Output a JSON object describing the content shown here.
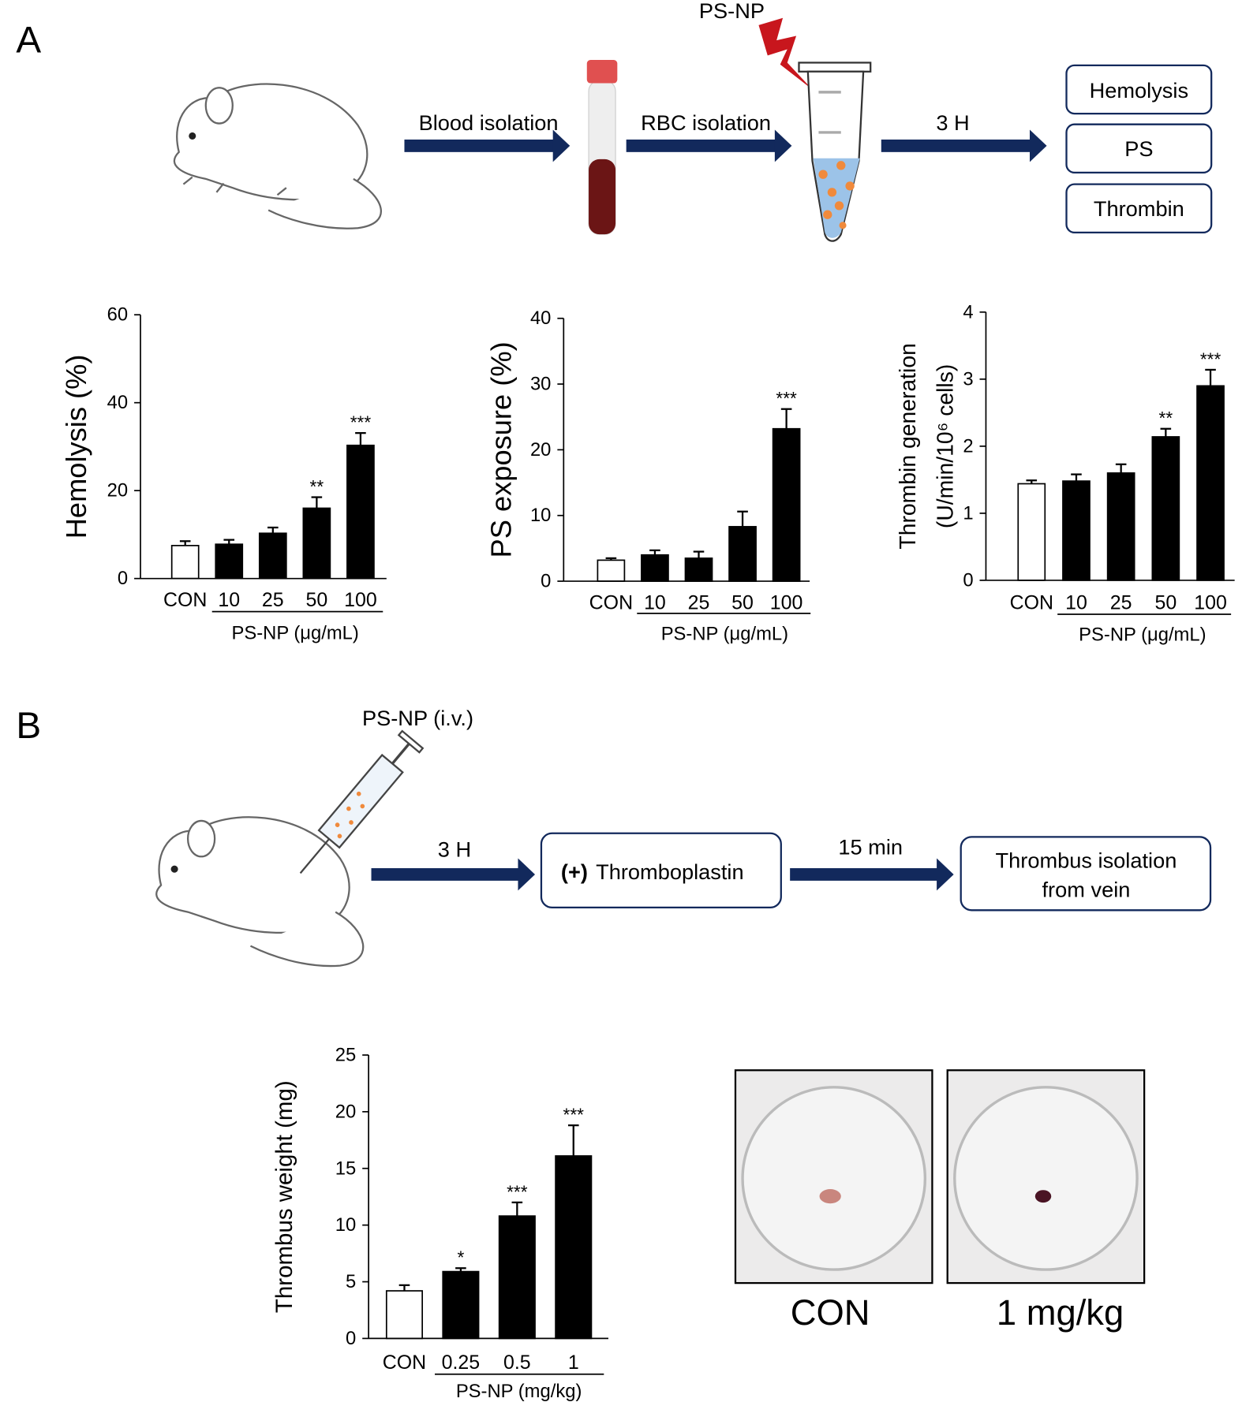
{
  "chart_data": [
    {
      "type": "bar",
      "y_label": "Hemolysis (%)",
      "categories": [
        "CON",
        "10",
        "25",
        "50",
        "100"
      ],
      "x_group_label": "PS-NP (μg/mL)",
      "values": [
        7.5,
        7.8,
        10.3,
        16,
        30.3
      ],
      "errors": [
        1,
        1,
        1.3,
        2.5,
        2.8
      ],
      "annotations": [
        null,
        null,
        null,
        "**",
        "***"
      ],
      "colors": [
        "#ffffff",
        "#000000",
        "#000000",
        "#000000",
        "#000000"
      ],
      "ylim": [
        0,
        60
      ],
      "yticks": [
        0,
        20,
        40,
        60
      ]
    },
    {
      "type": "bar",
      "y_label": "PS exposure (%)",
      "categories": [
        "CON",
        "10",
        "25",
        "50",
        "100"
      ],
      "x_group_label": "PS-NP (μg/mL)",
      "values": [
        3.2,
        4,
        3.5,
        8.3,
        23.2
      ],
      "errors": [
        0.3,
        0.7,
        1,
        2.3,
        3
      ],
      "annotations": [
        null,
        null,
        null,
        null,
        "***"
      ],
      "colors": [
        "#ffffff",
        "#000000",
        "#000000",
        "#000000",
        "#000000"
      ],
      "ylim": [
        0,
        40
      ],
      "yticks": [
        0,
        10,
        20,
        30,
        40
      ]
    },
    {
      "type": "bar",
      "y_label": [
        "Thrombin generation",
        "(U/min/10⁶ cells)"
      ],
      "categories": [
        "CON",
        "10",
        "25",
        "50",
        "100"
      ],
      "x_group_label": "PS-NP (μg/mL)",
      "values": [
        1.44,
        1.48,
        1.6,
        2.14,
        2.9
      ],
      "errors": [
        0.05,
        0.1,
        0.13,
        0.12,
        0.24
      ],
      "annotations": [
        null,
        null,
        null,
        "**",
        "***"
      ],
      "colors": [
        "#ffffff",
        "#000000",
        "#000000",
        "#000000",
        "#000000"
      ],
      "ylim": [
        0,
        4
      ],
      "yticks": [
        0,
        1,
        2,
        3,
        4
      ]
    },
    {
      "type": "bar",
      "y_label": "Thrombus weight (mg)",
      "categories": [
        "CON",
        "0.25",
        "0.5",
        "1"
      ],
      "x_group_label": "PS-NP (mg/kg)",
      "values": [
        4.2,
        5.9,
        10.8,
        16.1
      ],
      "errors": [
        0.5,
        0.3,
        1.2,
        2.7
      ],
      "annotations": [
        null,
        "*",
        "***",
        "***"
      ],
      "colors": [
        "#ffffff",
        "#000000",
        "#000000",
        "#000000"
      ],
      "ylim": [
        0,
        25
      ],
      "yticks": [
        0,
        5,
        10,
        15,
        20,
        25
      ]
    }
  ],
  "diagram": {
    "panel_a": {
      "label": "A",
      "arrows": [
        "Blood isolation",
        "RBC isolation",
        "3 H"
      ],
      "treatment": "PS-NP",
      "outcomes": [
        "Hemolysis",
        "PS",
        "Thrombin"
      ]
    },
    "panel_b": {
      "label": "B",
      "injection": "PS-NP (i.v.)",
      "arrows": [
        "3 H",
        "15 min"
      ],
      "step1_prefix": "(+)",
      "step1": "Thromboplastin",
      "step2": [
        "Thrombus isolation",
        "from vein"
      ],
      "photo_labels": [
        "CON",
        "1 mg/kg"
      ]
    }
  }
}
